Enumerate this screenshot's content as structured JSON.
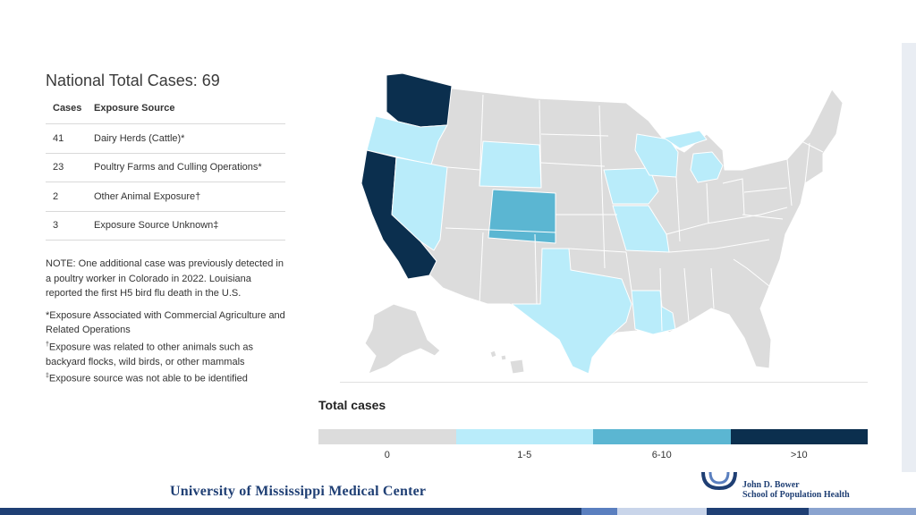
{
  "panel": {
    "title": "National Total Cases: 69",
    "table": {
      "headers": [
        "Cases",
        "Exposure Source"
      ],
      "rows": [
        {
          "cases": "41",
          "source": "Dairy Herds (Cattle)*"
        },
        {
          "cases": "23",
          "source": "Poultry Farms and Culling Operations*"
        },
        {
          "cases": "2",
          "source": "Other Animal Exposure†"
        },
        {
          "cases": "3",
          "source": "Exposure Source Unknown‡"
        }
      ]
    },
    "note": "NOTE: One additional case was previously detected in a poultry worker in Colorado in 2022. Louisiana reported the first H5 bird flu death in the U.S.",
    "footnotes": {
      "commercial": "*Exposure Associated with Commercial Agriculture and Related Operations",
      "other_animal_mark": "†",
      "other_animal": "Exposure was related to other animals such as backyard flocks, wild birds, or other mammals",
      "unknown_mark": "‡",
      "unknown": "Exposure source was not able to be identified"
    }
  },
  "map": {
    "states_by_category": {
      "gt10": [
        "WA",
        "CA"
      ],
      "6-10": [
        "CO"
      ],
      "1-5": [
        "OR",
        "NV",
        "WY",
        "IA",
        "MO",
        "WI",
        "MI",
        "TX",
        "LA"
      ],
      "0": [
        "all other states"
      ]
    }
  },
  "legend": {
    "title": "Total cases",
    "categories": [
      {
        "label": "0",
        "color": "#dcdcdc"
      },
      {
        "label": "1-5",
        "color": "#b9ecfa"
      },
      {
        "label": "6-10",
        "color": "#5bb6d2"
      },
      {
        "label": ">10",
        "color": "#0b2f4e"
      }
    ]
  },
  "footer": {
    "institution": "University of Mississippi Medical Center",
    "school_line1": "John D. Bower",
    "school_line2": "School of Population Health",
    "colors": {
      "navy": "#1f3f74",
      "accent": "#5a7fbf"
    }
  }
}
